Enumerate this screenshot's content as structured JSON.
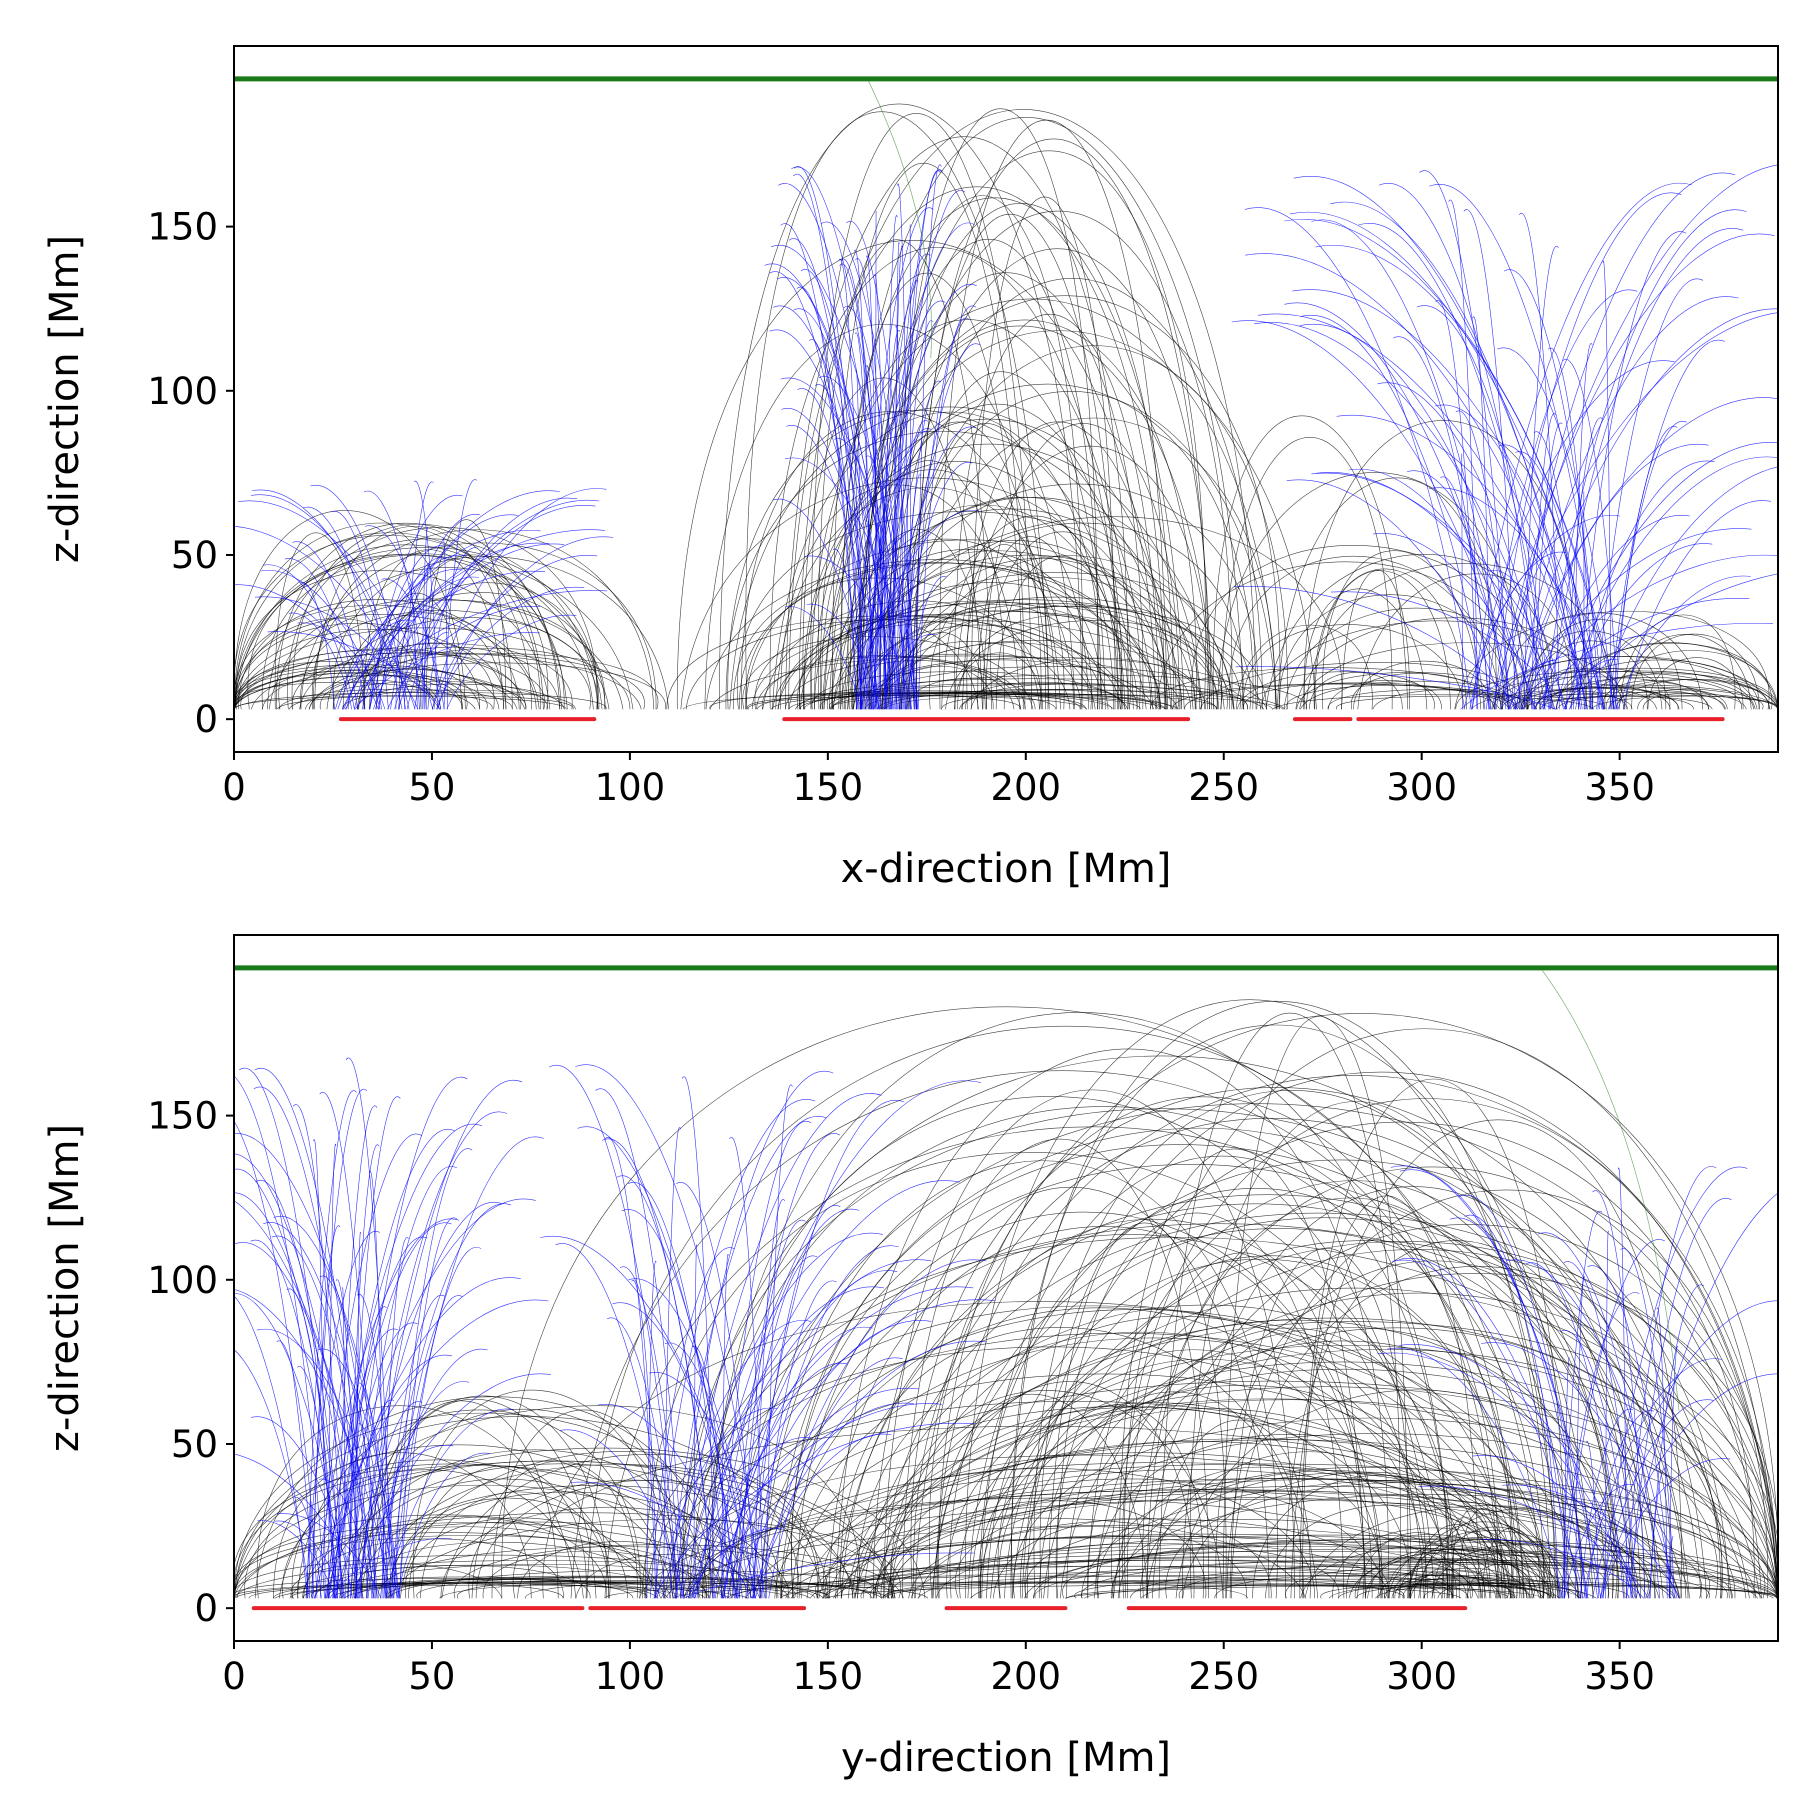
{
  "colors": {
    "closed_lines": "#000000",
    "open_lines": "#0000ff",
    "top_boundary": "#1a7a1a",
    "polarity_segments": "#e8202a",
    "stray_line": "#1a7a1a"
  },
  "chart_data": [
    {
      "type": "line",
      "panel": "top",
      "xlabel": "x-direction [Mm]",
      "ylabel": "z-direction [Mm]",
      "xlim": [
        0,
        390
      ],
      "ylim": [
        -10,
        205
      ],
      "xticks": [
        0,
        50,
        100,
        150,
        200,
        250,
        300,
        350
      ],
      "yticks": [
        0,
        50,
        100,
        150
      ],
      "grid": false,
      "top_boundary_z": 195,
      "polarity_segments": [
        [
          27,
          91
        ],
        [
          139,
          241
        ],
        [
          268,
          282
        ],
        [
          284,
          376
        ]
      ],
      "closed_line_clusters": [
        {
          "x_start": 5,
          "x_end": 102,
          "center": 45,
          "max_height": 62,
          "count": 70
        },
        {
          "x_start": 139,
          "x_end": 242,
          "center": 190,
          "max_height": 188,
          "count": 150
        },
        {
          "x_start": 250,
          "x_end": 330,
          "center": 290,
          "max_height": 100,
          "count": 40
        },
        {
          "x_start": 320,
          "x_end": 388,
          "center": 355,
          "max_height": 30,
          "count": 45
        }
      ],
      "open_line_clusters": [
        {
          "x_start": 0,
          "x_end": 85,
          "center": 40,
          "max_height": 76,
          "count": 60
        },
        {
          "x_start": 140,
          "x_end": 185,
          "center": 165,
          "max_height": 170,
          "count": 80
        },
        {
          "x_start": 270,
          "x_end": 390,
          "center": 330,
          "max_height": 170,
          "count": 95
        }
      ]
    },
    {
      "type": "line",
      "panel": "bottom",
      "xlabel": "y-direction [Mm]",
      "ylabel": "z-direction [Mm]",
      "xlim": [
        0,
        390
      ],
      "ylim": [
        -10,
        205
      ],
      "xticks": [
        0,
        50,
        100,
        150,
        200,
        250,
        300,
        350
      ],
      "yticks": [
        0,
        50,
        100,
        150
      ],
      "grid": false,
      "top_boundary_z": 195,
      "polarity_segments": [
        [
          5,
          88
        ],
        [
          90,
          144
        ],
        [
          180,
          210
        ],
        [
          226,
          311
        ]
      ],
      "closed_line_clusters": [
        {
          "x_start": 5,
          "x_end": 145,
          "center": 75,
          "max_height": 68,
          "count": 80
        },
        {
          "x_start": 150,
          "x_end": 375,
          "center": 260,
          "max_height": 188,
          "count": 200
        },
        {
          "x_start": 280,
          "x_end": 335,
          "center": 310,
          "max_height": 28,
          "count": 40
        }
      ],
      "open_line_clusters": [
        {
          "x_start": 0,
          "x_end": 70,
          "center": 30,
          "max_height": 168,
          "count": 90
        },
        {
          "x_start": 90,
          "x_end": 180,
          "center": 120,
          "max_height": 165,
          "count": 70
        },
        {
          "x_start": 300,
          "x_end": 390,
          "center": 350,
          "max_height": 135,
          "count": 50
        }
      ]
    }
  ]
}
